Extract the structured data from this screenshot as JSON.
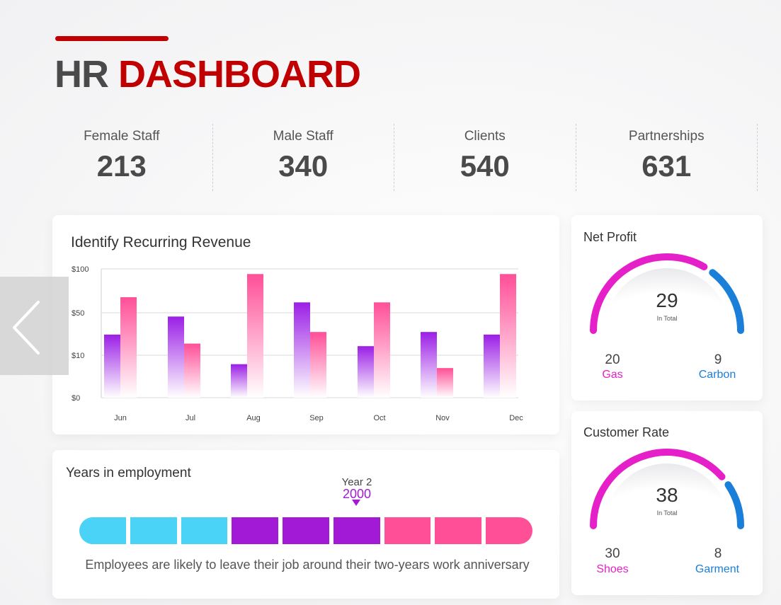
{
  "header": {
    "title_part1": "HR",
    "title_part2": "DASHBOARD",
    "accent_color": "#c00000"
  },
  "kpis": [
    {
      "label": "Female Staff",
      "value": "213"
    },
    {
      "label": "Male Staff",
      "value": "340"
    },
    {
      "label": "Clients",
      "value": "540"
    },
    {
      "label": "Partnerships",
      "value": "631"
    }
  ],
  "nav": {
    "prev_icon": "chevron-left-icon"
  },
  "chart_data": {
    "type": "bar",
    "title": "Identify Recurring Revenue",
    "categories": [
      "Jun",
      "Jul",
      "Aug",
      "Sep",
      "Oct",
      "Nov",
      "Dec"
    ],
    "y_ticks": [
      "$100",
      "$50",
      "$10",
      "$0"
    ],
    "series": [
      {
        "values": [
          49,
          63,
          26,
          74,
          40,
          51,
          49
        ],
        "color_top": "#9b1fe6",
        "color_bottom": "#ffffff"
      },
      {
        "values": [
          78,
          42,
          96,
          51,
          74,
          23,
          96
        ],
        "color_top": "#ff4f97",
        "color_bottom": "#ffffff"
      }
    ],
    "ylim": [
      0,
      100
    ],
    "grid": true
  },
  "employment": {
    "title": "Years in employment",
    "marker_label": "Year 2",
    "marker_year": "2000",
    "marker_segment": 5,
    "segments": [
      "#4bd2f7",
      "#4bd2f7",
      "#4bd2f7",
      "#a21ad6",
      "#a21ad6",
      "#a21ad6",
      "#ff4f97",
      "#ff4f97",
      "#ff4f97"
    ],
    "note": "Employees are likely to leave their job around their two-years work anniversary"
  },
  "net_profit": {
    "title": "Net Profit",
    "total": "29",
    "total_sub": "In Total",
    "left_value": "20",
    "left_label": "Gas",
    "right_value": "9",
    "right_label": "Carbon",
    "left_share": 0.69,
    "left_color": "#e620c8",
    "right_color": "#1a7fd8"
  },
  "customer_rate": {
    "title": "Customer Rate",
    "total": "38",
    "total_sub": "In Total",
    "left_value": "30",
    "left_label": "Shoes",
    "right_value": "8",
    "right_label": "Garment",
    "left_share": 0.79,
    "left_color": "#e620c8",
    "right_color": "#1a7fd8"
  }
}
